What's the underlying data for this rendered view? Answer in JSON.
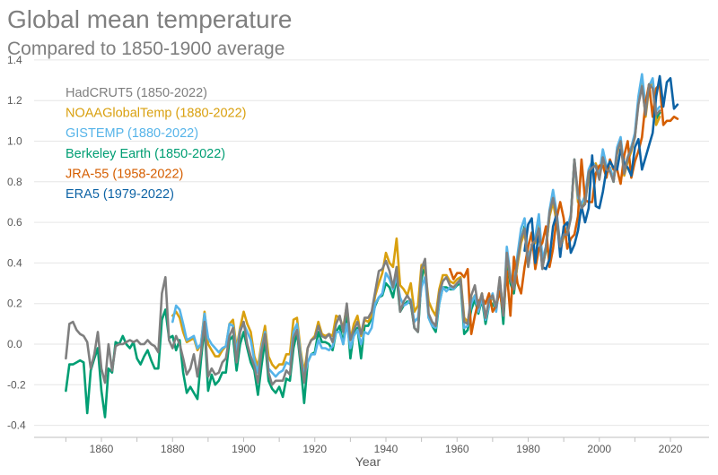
{
  "chart_data": {
    "type": "line",
    "title": "Global mean temperature",
    "subtitle": "Compared to 1850-1900 average",
    "xlabel": "Year",
    "ylabel": "",
    "xlim": [
      1845,
      2027
    ],
    "ylim": [
      -0.45,
      1.42
    ],
    "xticks": [
      1860,
      1880,
      1900,
      1920,
      1940,
      1960,
      1980,
      2000,
      2020
    ],
    "yticks": [
      -0.4,
      -0.2,
      0.0,
      0.2,
      0.4,
      0.6,
      0.8,
      1.0,
      1.2,
      1.4
    ],
    "ytick_labels": [
      "-0.4",
      "-0.2",
      "0.0",
      "0.2",
      "0.4",
      "0.6",
      "0.8",
      "1.0",
      "1.2",
      "1.4"
    ],
    "grid": "horizontal",
    "legend_position": "top-left",
    "series": [
      {
        "name": "HadCRUT5 (1850-2022)",
        "color": "#7f7f7f",
        "start": 1850,
        "values": [
          -0.07,
          0.1,
          0.11,
          0.07,
          0.05,
          0.04,
          0.01,
          -0.12,
          -0.05,
          0.06,
          -0.12,
          -0.19,
          0.0,
          -0.13,
          -0.01,
          0.0,
          0.0,
          0.01,
          0.02,
          0.01,
          0.02,
          0.0,
          0.0,
          0.02,
          0.0,
          -0.01,
          -0.04,
          0.25,
          0.33,
          0.02,
          -0.02,
          0.04,
          0.0,
          -0.07,
          -0.15,
          -0.12,
          -0.05,
          -0.16,
          -0.04,
          0.11,
          -0.16,
          -0.12,
          -0.15,
          -0.14,
          -0.09,
          -0.07,
          0.04,
          0.08,
          -0.09,
          0.06,
          0.11,
          0.0,
          -0.06,
          -0.11,
          -0.19,
          -0.04,
          0.05,
          -0.14,
          -0.2,
          -0.18,
          -0.18,
          -0.18,
          -0.13,
          -0.15,
          0.03,
          0.07,
          -0.07,
          -0.19,
          -0.02,
          0.02,
          0.03,
          0.09,
          0.04,
          0.03,
          0.05,
          0.01,
          0.1,
          0.14,
          0.06,
          0.2,
          0.02,
          0.07,
          0.11,
          0.05,
          0.13,
          0.13,
          0.16,
          0.26,
          0.36,
          0.37,
          0.41,
          0.36,
          0.28,
          0.38,
          0.16,
          0.21,
          0.24,
          0.21,
          0.08,
          0.06,
          0.37,
          0.42,
          0.15,
          0.11,
          0.09,
          0.25,
          0.31,
          0.33,
          0.29,
          0.28,
          0.3,
          0.32,
          0.11,
          0.1,
          0.24,
          0.29,
          0.18,
          0.25,
          0.13,
          0.22,
          0.24,
          0.18,
          0.33,
          0.14,
          0.45,
          0.32,
          0.27,
          0.41,
          0.52,
          0.57,
          0.38,
          0.49,
          0.51,
          0.57,
          0.37,
          0.48,
          0.65,
          0.72,
          0.63,
          0.48,
          0.54,
          0.54,
          0.62,
          0.91,
          0.74,
          0.67,
          0.69,
          0.85,
          0.87,
          0.88,
          0.81,
          0.92,
          0.86,
          0.85,
          0.8,
          0.95,
          1.0,
          0.84,
          0.92,
          0.96,
          1.02,
          1.18,
          1.27,
          1.13,
          1.28,
          1.26,
          1.13,
          1.15
        ],
        "end": 2022
      },
      {
        "name": "NOAAGlobalTemp (1880-2022)",
        "color": "#d9a00f",
        "start": 1880,
        "values": [
          0.14,
          0.16,
          0.13,
          0.06,
          0.01,
          0.02,
          0.03,
          -0.03,
          0.0,
          0.16,
          0.0,
          -0.03,
          -0.06,
          -0.06,
          -0.03,
          -0.01,
          0.1,
          0.12,
          -0.02,
          0.08,
          0.16,
          0.1,
          0.06,
          -0.06,
          -0.11,
          0.0,
          0.09,
          -0.06,
          -0.1,
          -0.12,
          -0.1,
          -0.1,
          -0.05,
          -0.05,
          0.12,
          0.13,
          -0.03,
          -0.14,
          -0.02,
          0.02,
          0.04,
          0.11,
          0.05,
          0.04,
          0.05,
          0.04,
          0.14,
          0.13,
          0.08,
          0.19,
          0.02,
          0.1,
          0.14,
          0.04,
          0.12,
          0.11,
          0.14,
          0.24,
          0.3,
          0.35,
          0.45,
          0.4,
          0.38,
          0.52,
          0.29,
          0.27,
          0.24,
          0.3,
          0.16,
          0.19,
          0.39,
          0.37,
          0.21,
          0.17,
          0.14,
          0.27,
          0.34,
          0.34,
          0.31,
          0.3,
          0.32,
          0.33,
          0.13,
          0.11,
          0.21,
          0.24,
          0.19,
          0.25,
          0.13,
          0.21,
          0.23,
          0.17,
          0.31,
          0.16,
          0.44,
          0.32,
          0.27,
          0.39,
          0.5,
          0.55,
          0.41,
          0.48,
          0.5,
          0.58,
          0.38,
          0.47,
          0.63,
          0.7,
          0.6,
          0.47,
          0.53,
          0.54,
          0.63,
          0.9,
          0.7,
          0.69,
          0.7,
          0.82,
          0.87,
          0.89,
          0.84,
          0.91,
          0.86,
          0.87,
          0.81,
          0.94,
          1.0,
          0.83,
          0.9,
          0.95,
          1.02,
          1.19,
          1.29,
          1.12,
          1.26,
          1.3,
          1.08,
          1.12
        ],
        "end": 2022
      },
      {
        "name": "GISTEMP (1880-2022)",
        "color": "#56b4e9",
        "start": 1880,
        "values": [
          0.11,
          0.19,
          0.17,
          0.1,
          0.02,
          0.03,
          0.04,
          -0.02,
          0.0,
          0.15,
          0.03,
          0.0,
          -0.02,
          -0.04,
          -0.02,
          -0.01,
          0.1,
          0.09,
          -0.04,
          0.07,
          0.1,
          0.06,
          0.02,
          -0.08,
          -0.14,
          -0.02,
          0.06,
          -0.12,
          -0.14,
          -0.16,
          -0.14,
          -0.13,
          -0.09,
          -0.1,
          0.06,
          0.1,
          -0.05,
          -0.16,
          -0.09,
          -0.05,
          -0.05,
          0.02,
          -0.02,
          -0.02,
          -0.03,
          -0.01,
          0.06,
          0.06,
          0.0,
          0.1,
          -0.02,
          0.04,
          0.07,
          0.0,
          0.06,
          0.05,
          0.08,
          0.2,
          0.23,
          0.25,
          0.35,
          0.32,
          0.27,
          0.33,
          0.23,
          0.19,
          0.2,
          0.22,
          0.11,
          0.13,
          0.28,
          0.33,
          0.13,
          0.09,
          0.08,
          0.2,
          0.28,
          0.26,
          0.28,
          0.27,
          0.3,
          0.31,
          0.08,
          0.09,
          0.2,
          0.24,
          0.16,
          0.23,
          0.12,
          0.19,
          0.25,
          0.16,
          0.3,
          0.14,
          0.48,
          0.34,
          0.29,
          0.44,
          0.57,
          0.62,
          0.43,
          0.48,
          0.53,
          0.64,
          0.42,
          0.48,
          0.66,
          0.76,
          0.65,
          0.49,
          0.56,
          0.57,
          0.64,
          0.9,
          0.72,
          0.69,
          0.73,
          0.86,
          0.9,
          0.87,
          0.84,
          0.96,
          0.88,
          0.87,
          0.81,
          0.97,
          1.02,
          0.87,
          0.92,
          0.97,
          1.04,
          1.22,
          1.33,
          1.17,
          1.27,
          1.31,
          1.15,
          1.17
        ],
        "end": 2022
      },
      {
        "name": "Berkeley Earth (1850-2022)",
        "color": "#009e73",
        "start": 1850,
        "values": [
          -0.23,
          -0.1,
          -0.1,
          -0.09,
          -0.08,
          -0.09,
          -0.34,
          -0.13,
          -0.07,
          -0.02,
          -0.23,
          -0.36,
          -0.12,
          -0.14,
          0.01,
          0.0,
          0.04,
          0.0,
          -0.02,
          0.01,
          -0.07,
          -0.1,
          -0.06,
          -0.03,
          -0.08,
          -0.12,
          -0.12,
          0.12,
          0.17,
          0.03,
          0.04,
          -0.03,
          0.02,
          -0.14,
          -0.24,
          -0.21,
          -0.24,
          -0.27,
          -0.08,
          0.09,
          -0.23,
          -0.15,
          -0.2,
          -0.18,
          -0.14,
          -0.14,
          0.02,
          0.04,
          -0.13,
          0.0,
          0.06,
          -0.02,
          -0.09,
          -0.13,
          -0.25,
          -0.11,
          0.02,
          -0.18,
          -0.22,
          -0.24,
          -0.21,
          -0.26,
          -0.17,
          -0.18,
          -0.02,
          0.06,
          -0.1,
          -0.29,
          -0.09,
          -0.05,
          -0.04,
          0.06,
          0.01,
          0.01,
          0.0,
          -0.03,
          0.06,
          0.09,
          0.0,
          0.16,
          -0.07,
          0.06,
          0.08,
          -0.07,
          0.09,
          0.09,
          0.13,
          0.19,
          0.23,
          0.24,
          0.3,
          0.28,
          0.23,
          0.33,
          0.16,
          0.19,
          0.21,
          0.2,
          0.08,
          0.06,
          0.32,
          0.39,
          0.13,
          0.09,
          0.06,
          0.2,
          0.28,
          0.28,
          0.27,
          0.27,
          0.29,
          0.3,
          0.05,
          0.07,
          0.17,
          0.22,
          0.15,
          0.22,
          0.1,
          0.19,
          0.2,
          0.17,
          0.3,
          0.1,
          0.42,
          0.3,
          0.25,
          0.4,
          0.51,
          0.58,
          0.41,
          0.48,
          0.52,
          0.6,
          0.38,
          0.46,
          0.64,
          0.73,
          0.63,
          0.47,
          0.53,
          0.55,
          0.63,
          0.91,
          0.72,
          0.68,
          0.71,
          0.85,
          0.88,
          0.88,
          0.82,
          0.93,
          0.86,
          0.86,
          0.8,
          0.95,
          1.01,
          0.85,
          0.92,
          0.97,
          1.03,
          1.2,
          1.3,
          1.14,
          1.28,
          1.29,
          1.11,
          1.14
        ],
        "end": 2022
      },
      {
        "name": "JRA-55 (1958-2022)",
        "color": "#d55e00",
        "start": 1958,
        "values": [
          0.37,
          0.32,
          0.35,
          0.35,
          0.33,
          0.37,
          0.05,
          0.14,
          0.21,
          0.23,
          0.2,
          0.25,
          0.16,
          0.19,
          0.26,
          0.15,
          0.36,
          0.14,
          0.43,
          0.3,
          0.25,
          0.38,
          0.48,
          0.55,
          0.37,
          0.47,
          0.5,
          0.58,
          0.38,
          0.47,
          0.62,
          0.7,
          0.62,
          0.47,
          0.52,
          0.54,
          0.63,
          0.91,
          0.71,
          0.7,
          0.7,
          0.84,
          0.88,
          0.88,
          0.82,
          0.91,
          0.86,
          0.86,
          0.79,
          0.93,
          1.0,
          0.82,
          0.9,
          0.95,
          1.02,
          1.19,
          1.28,
          1.12,
          1.26,
          1.28,
          1.08,
          1.1,
          1.1,
          1.12,
          1.11
        ],
        "end": 2022
      },
      {
        "name": "ERA5 (1979-2022)",
        "color": "#0d63a5",
        "start": 1979,
        "values": [
          0.46,
          0.59,
          0.62,
          0.4,
          0.56,
          0.38,
          0.37,
          0.42,
          0.58,
          0.64,
          0.43,
          0.58,
          0.6,
          0.45,
          0.49,
          0.56,
          0.68,
          0.6,
          0.67,
          0.93,
          0.68,
          0.67,
          0.75,
          0.86,
          0.9,
          0.87,
          0.86,
          0.96,
          0.89,
          0.87,
          0.83,
          0.97,
          1.01,
          0.86,
          0.92,
          0.98,
          1.04,
          1.22,
          1.32,
          1.17,
          1.29,
          1.31,
          1.16,
          1.18
        ],
        "end": 2022
      }
    ]
  }
}
